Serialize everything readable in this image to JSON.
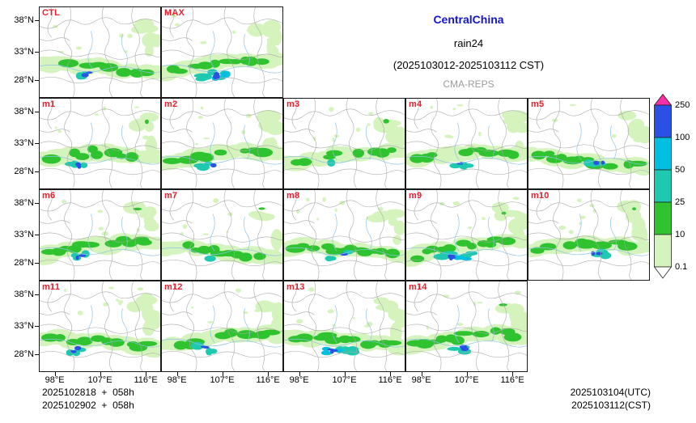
{
  "title": {
    "region": "CentralChina",
    "variable": "rain24",
    "period": "(2025103012-2025103112 CST)",
    "model": "CMA-REPS"
  },
  "axes": {
    "lat_ticks": [
      "38°N",
      "33°N",
      "28°N"
    ],
    "lon_ticks": [
      "98°E",
      "107°E",
      "116°E"
    ]
  },
  "panels": [
    {
      "label": "CTL",
      "row": 0,
      "col": 0,
      "intensity": 2,
      "core": [
        60,
        84
      ]
    },
    {
      "label": "MAX",
      "row": 0,
      "col": 1,
      "intensity": 3,
      "core": [
        70,
        86
      ]
    },
    {
      "label": "m1",
      "row": 1,
      "col": 0,
      "intensity": 2,
      "core": [
        52,
        84
      ]
    },
    {
      "label": "m2",
      "row": 1,
      "col": 1,
      "intensity": 2,
      "core": [
        58,
        86
      ]
    },
    {
      "label": "m3",
      "row": 1,
      "col": 2,
      "intensity": 1,
      "core": [
        66,
        80
      ]
    },
    {
      "label": "m4",
      "row": 1,
      "col": 3,
      "intensity": 2,
      "core": [
        72,
        82
      ]
    },
    {
      "label": "m5",
      "row": 1,
      "col": 4,
      "intensity": 2,
      "core": [
        88,
        80
      ]
    },
    {
      "label": "m6",
      "row": 2,
      "col": 0,
      "intensity": 2,
      "core": [
        50,
        84
      ]
    },
    {
      "label": "m7",
      "row": 2,
      "col": 1,
      "intensity": 1,
      "core": [
        60,
        82
      ]
    },
    {
      "label": "m8",
      "row": 2,
      "col": 2,
      "intensity": 2,
      "core": [
        68,
        82
      ]
    },
    {
      "label": "m9",
      "row": 2,
      "col": 3,
      "intensity": 3,
      "core": [
        62,
        84
      ]
    },
    {
      "label": "m10",
      "row": 2,
      "col": 4,
      "intensity": 2,
      "core": [
        84,
        82
      ]
    },
    {
      "label": "m11",
      "row": 3,
      "col": 0,
      "intensity": 2,
      "core": [
        48,
        86
      ]
    },
    {
      "label": "m12",
      "row": 3,
      "col": 1,
      "intensity": 2,
      "core": [
        56,
        84
      ]
    },
    {
      "label": "m13",
      "row": 3,
      "col": 2,
      "intensity": 3,
      "core": [
        64,
        88
      ]
    },
    {
      "label": "m14",
      "row": 3,
      "col": 3,
      "intensity": 2,
      "core": [
        70,
        84
      ]
    }
  ],
  "colorbar": {
    "levels": [
      "250",
      "100",
      "50",
      "25",
      "10",
      "0.1"
    ],
    "band_colors": [
      "#2b50e6",
      "#00bfe0",
      "#1ec9b0",
      "#2fc32f",
      "#d4f3bd"
    ],
    "arrow_top_color": "#f72fa7",
    "arrow_bottom_color": "#ffffff"
  },
  "palette": {
    "pale": "#d4f3bd",
    "green": "#2fc32f",
    "teal": "#1ec9b0",
    "cyan": "#00bfe0",
    "blue": "#2b50e6",
    "border_gray": "#a9a9a9",
    "river_blue": "#8fc1e6"
  },
  "colors": {
    "member_label": "#e8202e",
    "title_blue": "#1414cc",
    "model_gray": "#9c9c9c",
    "axis_text": "#000000"
  },
  "footer": {
    "left_line1": "2025102818  +  058h",
    "left_line2": "2025102902  +  058h",
    "right_line1": "2025103104(UTC)",
    "right_line2": "2025103112(CST)"
  },
  "chart_data": {
    "type": "heatmap",
    "title": "CentralChina rain24 (2025103012-2025103112 CST)",
    "model": "CMA-REPS",
    "panels": [
      "CTL",
      "MAX",
      "m1",
      "m2",
      "m3",
      "m4",
      "m5",
      "m6",
      "m7",
      "m8",
      "m9",
      "m10",
      "m11",
      "m12",
      "m13",
      "m14"
    ],
    "grid_rows": [
      [
        "CTL",
        "MAX"
      ],
      [
        "m1",
        "m2",
        "m3",
        "m4",
        "m5"
      ],
      [
        "m6",
        "m7",
        "m8",
        "m9",
        "m10"
      ],
      [
        "m11",
        "m12",
        "m13",
        "m14"
      ]
    ],
    "x_ticks": [
      "98°E",
      "107°E",
      "116°E"
    ],
    "y_ticks": [
      "38°N",
      "33°N",
      "28°N"
    ],
    "contour_levels_mm": [
      0.1,
      10,
      25,
      50,
      100,
      250
    ],
    "level_colors_low_to_high": [
      "#d4f3bd",
      "#2fc32f",
      "#1ec9b0",
      "#00bfe0",
      "#2b50e6",
      "#f72fa7"
    ],
    "legend_position": "right",
    "init_labels": [
      "2025102818  +  058h",
      "2025102902  +  058h"
    ],
    "valid_labels": [
      "2025103104(UTC)",
      "2025103112(CST)"
    ]
  }
}
